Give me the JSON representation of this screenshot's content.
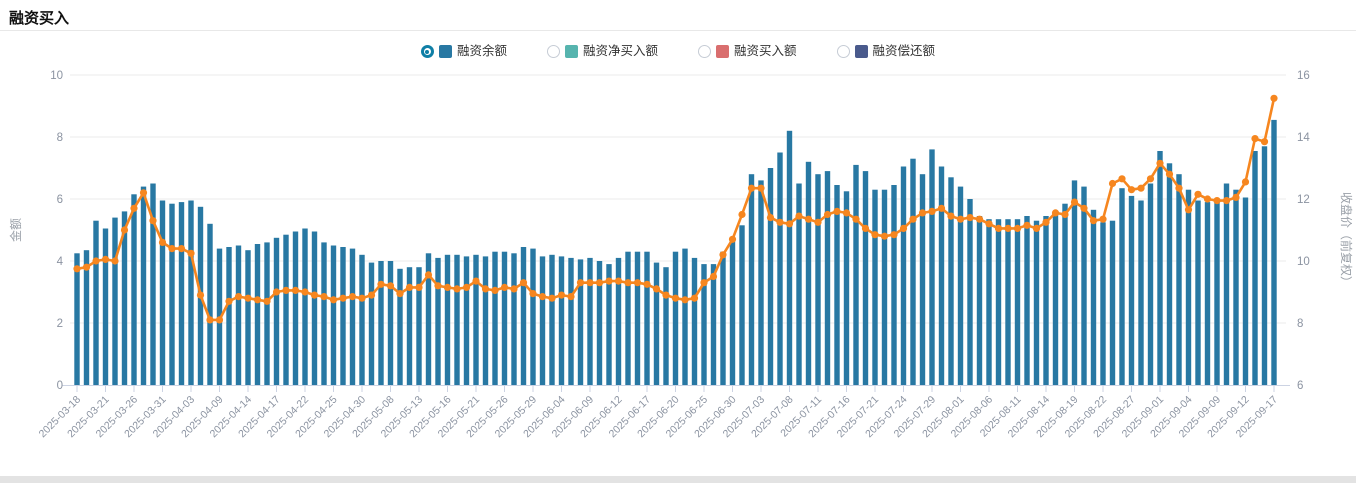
{
  "page": {
    "title": "融资买入",
    "background": "#ffffff",
    "bottom_bar_color": "#e3e3e3",
    "header_border_color": "#e8e8e8"
  },
  "legend": {
    "radio_selected_color": "#0f7fa6",
    "items": [
      {
        "label": "融资余额",
        "color": "#2878a3",
        "selected": true
      },
      {
        "label": "融资净买入额",
        "color": "#56b4ae",
        "selected": false
      },
      {
        "label": "融资买入额",
        "color": "#d96e6e",
        "selected": false
      },
      {
        "label": "融资偿还额",
        "color": "#4a5a8c",
        "selected": false
      }
    ]
  },
  "chart_data": {
    "type": "bar+line",
    "title": "融资买入",
    "grid": true,
    "legend_position": "top",
    "x_tick_interval": 3,
    "x": [
      "2025-03-18",
      "2025-03-19",
      "2025-03-20",
      "2025-03-21",
      "2025-03-24",
      "2025-03-25",
      "2025-03-26",
      "2025-03-27",
      "2025-03-28",
      "2025-03-31",
      "2025-04-01",
      "2025-04-02",
      "2025-04-03",
      "2025-04-07",
      "2025-04-08",
      "2025-04-09",
      "2025-04-10",
      "2025-04-11",
      "2025-04-14",
      "2025-04-15",
      "2025-04-16",
      "2025-04-17",
      "2025-04-18",
      "2025-04-21",
      "2025-04-22",
      "2025-04-23",
      "2025-04-24",
      "2025-04-25",
      "2025-04-28",
      "2025-04-29",
      "2025-04-30",
      "2025-05-06",
      "2025-05-07",
      "2025-05-08",
      "2025-05-09",
      "2025-05-12",
      "2025-05-13",
      "2025-05-14",
      "2025-05-15",
      "2025-05-16",
      "2025-05-19",
      "2025-05-20",
      "2025-05-21",
      "2025-05-22",
      "2025-05-23",
      "2025-05-26",
      "2025-05-27",
      "2025-05-28",
      "2025-05-29",
      "2025-05-30",
      "2025-06-03",
      "2025-06-04",
      "2025-06-05",
      "2025-06-06",
      "2025-06-09",
      "2025-06-10",
      "2025-06-11",
      "2025-06-12",
      "2025-06-13",
      "2025-06-16",
      "2025-06-17",
      "2025-06-18",
      "2025-06-19",
      "2025-06-20",
      "2025-06-23",
      "2025-06-24",
      "2025-06-25",
      "2025-06-26",
      "2025-06-27",
      "2025-06-30",
      "2025-07-01",
      "2025-07-02",
      "2025-07-03",
      "2025-07-04",
      "2025-07-07",
      "2025-07-08",
      "2025-07-09",
      "2025-07-10",
      "2025-07-11",
      "2025-07-14",
      "2025-07-15",
      "2025-07-16",
      "2025-07-17",
      "2025-07-18",
      "2025-07-21",
      "2025-07-22",
      "2025-07-23",
      "2025-07-24",
      "2025-07-25",
      "2025-07-28",
      "2025-07-29",
      "2025-07-30",
      "2025-07-31",
      "2025-08-01",
      "2025-08-04",
      "2025-08-05",
      "2025-08-06",
      "2025-08-07",
      "2025-08-08",
      "2025-08-11",
      "2025-08-12",
      "2025-08-13",
      "2025-08-14",
      "2025-08-15",
      "2025-08-18",
      "2025-08-19",
      "2025-08-20",
      "2025-08-21",
      "2025-08-22",
      "2025-08-25",
      "2025-08-26",
      "2025-08-27",
      "2025-08-28",
      "2025-08-29",
      "2025-09-01",
      "2025-09-02",
      "2025-09-03",
      "2025-09-04",
      "2025-09-05",
      "2025-09-08",
      "2025-09-09",
      "2025-09-10",
      "2025-09-11",
      "2025-09-12",
      "2025-09-15",
      "2025-09-16",
      "2025-09-17"
    ],
    "series": [
      {
        "name": "融资余额",
        "type": "bar",
        "axis": "left",
        "color": "#2878a3",
        "values": [
          4.25,
          4.35,
          5.3,
          5.05,
          5.4,
          5.6,
          6.15,
          6.4,
          6.5,
          5.95,
          5.85,
          5.9,
          5.95,
          5.75,
          5.2,
          4.4,
          4.45,
          4.5,
          4.35,
          4.55,
          4.6,
          4.75,
          4.85,
          4.95,
          5.05,
          4.95,
          4.6,
          4.5,
          4.45,
          4.4,
          4.2,
          3.95,
          4.0,
          4.0,
          3.75,
          3.8,
          3.8,
          4.25,
          4.1,
          4.2,
          4.2,
          4.15,
          4.2,
          4.15,
          4.3,
          4.3,
          4.25,
          4.45,
          4.4,
          4.15,
          4.2,
          4.15,
          4.1,
          4.05,
          4.1,
          4.0,
          3.9,
          4.1,
          4.3,
          4.3,
          4.3,
          3.95,
          3.8,
          4.3,
          4.4,
          4.1,
          3.9,
          3.9,
          4.3,
          4.7,
          5.15,
          6.8,
          6.6,
          7.0,
          7.5,
          8.2,
          6.5,
          7.2,
          6.8,
          6.9,
          6.45,
          6.25,
          7.1,
          6.9,
          6.3,
          6.3,
          6.45,
          7.05,
          7.3,
          6.8,
          7.6,
          7.05,
          6.7,
          6.4,
          6.0,
          5.45,
          5.35,
          5.35,
          5.35,
          5.35,
          5.45,
          5.3,
          5.45,
          5.6,
          5.85,
          6.6,
          6.4,
          5.65,
          5.25,
          5.3,
          6.35,
          6.1,
          5.95,
          6.5,
          7.55,
          7.15,
          6.8,
          6.3,
          5.95,
          5.9,
          5.95,
          6.5,
          6.3,
          6.05,
          7.55,
          7.7,
          8.55
        ]
      },
      {
        "name": "收盘价（前复权）",
        "type": "line",
        "axis": "right",
        "color": "#f6861f",
        "values": [
          9.75,
          9.8,
          10.0,
          10.05,
          10.0,
          11.0,
          11.7,
          12.2,
          11.3,
          10.6,
          10.4,
          10.4,
          10.25,
          8.9,
          8.1,
          8.1,
          8.7,
          8.85,
          8.8,
          8.75,
          8.7,
          9.0,
          9.05,
          9.05,
          9.0,
          8.9,
          8.85,
          8.75,
          8.8,
          8.85,
          8.8,
          8.9,
          9.25,
          9.2,
          8.95,
          9.15,
          9.15,
          9.55,
          9.2,
          9.15,
          9.1,
          9.15,
          9.35,
          9.1,
          9.05,
          9.15,
          9.1,
          9.3,
          8.95,
          8.85,
          8.8,
          8.9,
          8.85,
          9.3,
          9.3,
          9.3,
          9.35,
          9.35,
          9.3,
          9.3,
          9.25,
          9.1,
          8.9,
          8.8,
          8.75,
          8.8,
          9.3,
          9.5,
          10.2,
          10.7,
          11.5,
          12.35,
          12.35,
          11.4,
          11.25,
          11.2,
          11.45,
          11.35,
          11.25,
          11.5,
          11.6,
          11.55,
          11.35,
          11.05,
          10.85,
          10.8,
          10.85,
          11.05,
          11.35,
          11.55,
          11.6,
          11.7,
          11.45,
          11.35,
          11.4,
          11.35,
          11.2,
          11.05,
          11.05,
          11.05,
          11.15,
          11.05,
          11.25,
          11.55,
          11.5,
          11.9,
          11.7,
          11.3,
          11.35,
          12.5,
          12.65,
          12.3,
          12.35,
          12.65,
          13.15,
          12.8,
          12.35,
          11.65,
          12.15,
          12.0,
          11.95,
          11.95,
          12.05,
          12.55,
          13.95,
          13.85,
          15.25
        ]
      }
    ],
    "left_axis": {
      "name": "金额",
      "min": 0,
      "max": 10,
      "ticks": [
        0,
        2,
        4,
        6,
        8,
        10
      ]
    },
    "right_axis": {
      "name": "收盘价（前复权）",
      "min": 6,
      "max": 16,
      "ticks": [
        6,
        8,
        10,
        12,
        14,
        16
      ]
    },
    "colors": {
      "grid": "#ebebeb",
      "axis_line": "#ccd3e3",
      "tick_text": "#8b93a1",
      "axis_name": "#9aa0a8"
    }
  }
}
